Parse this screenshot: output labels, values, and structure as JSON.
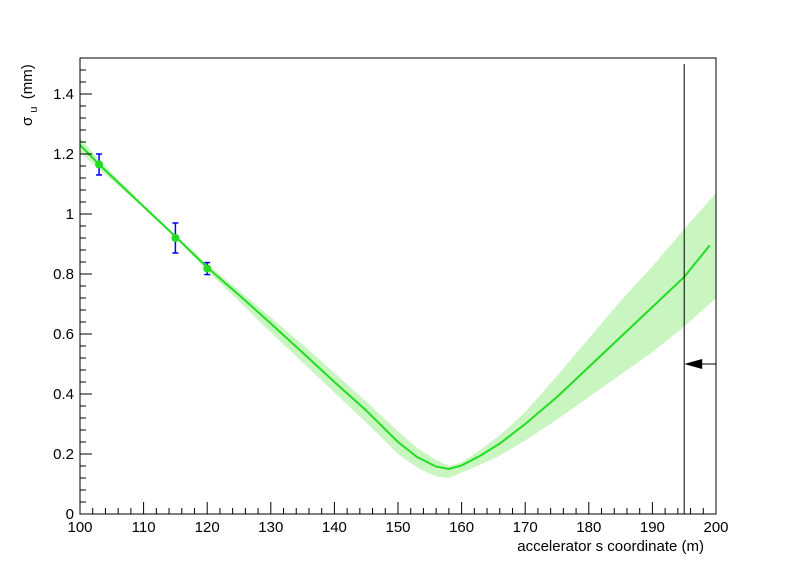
{
  "chart_data": {
    "type": "line",
    "title": "",
    "xlabel": "accelerator s coordinate (m)",
    "ylabel": {
      "symbol": "σ",
      "subscript": "u",
      "unit": "(mm)"
    },
    "xlim": [
      100,
      200
    ],
    "ylim": [
      0,
      1.52
    ],
    "x_ticks": [
      100,
      110,
      120,
      130,
      140,
      150,
      160,
      170,
      180,
      190,
      200
    ],
    "x_tick_labels": [
      "100",
      "110",
      "120",
      "130",
      "140",
      "150",
      "160",
      "170",
      "180",
      "190",
      "200"
    ],
    "y_ticks": [
      0,
      0.2,
      0.4,
      0.6,
      0.8,
      1.0,
      1.2,
      1.4
    ],
    "y_tick_labels": [
      "0",
      "0.2",
      "0.4",
      "0.6",
      "0.8",
      "1",
      "1.2",
      "1.4"
    ],
    "grid": false,
    "colors": {
      "fit_line": "#22dd22",
      "band": "#c8f5c0",
      "points": "#22dd22",
      "error_bars": "#0000ff",
      "marker": "#000000"
    },
    "fit_curve": {
      "x": [
        100,
        103,
        110,
        115,
        120,
        125,
        130,
        135,
        140,
        145,
        150,
        153,
        156,
        158,
        160,
        163,
        166,
        170,
        175,
        180,
        185,
        190,
        195,
        199
      ],
      "y": [
        1.23,
        1.165,
        1.025,
        0.925,
        0.822,
        0.73,
        0.635,
        0.538,
        0.44,
        0.345,
        0.24,
        0.19,
        0.158,
        0.15,
        0.162,
        0.195,
        0.235,
        0.3,
        0.39,
        0.49,
        0.59,
        0.69,
        0.79,
        0.895
      ]
    },
    "uncertainty_band": {
      "x": [
        100,
        103,
        110,
        115,
        120,
        125,
        130,
        135,
        140,
        145,
        150,
        153,
        156,
        158,
        160,
        163,
        166,
        170,
        175,
        180,
        185,
        190,
        195,
        200
      ],
      "upper": [
        1.255,
        1.18,
        1.03,
        0.93,
        0.832,
        0.745,
        0.655,
        0.565,
        0.47,
        0.375,
        0.275,
        0.22,
        0.18,
        0.16,
        0.172,
        0.215,
        0.262,
        0.34,
        0.46,
        0.585,
        0.71,
        0.825,
        0.95,
        1.07
      ],
      "lower": [
        1.205,
        1.15,
        1.02,
        0.92,
        0.81,
        0.71,
        0.605,
        0.505,
        0.405,
        0.305,
        0.2,
        0.155,
        0.125,
        0.12,
        0.138,
        0.165,
        0.195,
        0.245,
        0.315,
        0.39,
        0.465,
        0.54,
        0.625,
        0.72
      ]
    },
    "measurements": [
      {
        "x": 103,
        "y": 1.165,
        "err": 0.035
      },
      {
        "x": 115,
        "y": 0.92,
        "err": 0.05
      },
      {
        "x": 120,
        "y": 0.818,
        "err": 0.02
      }
    ],
    "vertical_line": {
      "x": 195,
      "y_top": 1.5
    },
    "arrow": {
      "x_from": 200,
      "x_to": 195,
      "y": 0.5
    }
  }
}
